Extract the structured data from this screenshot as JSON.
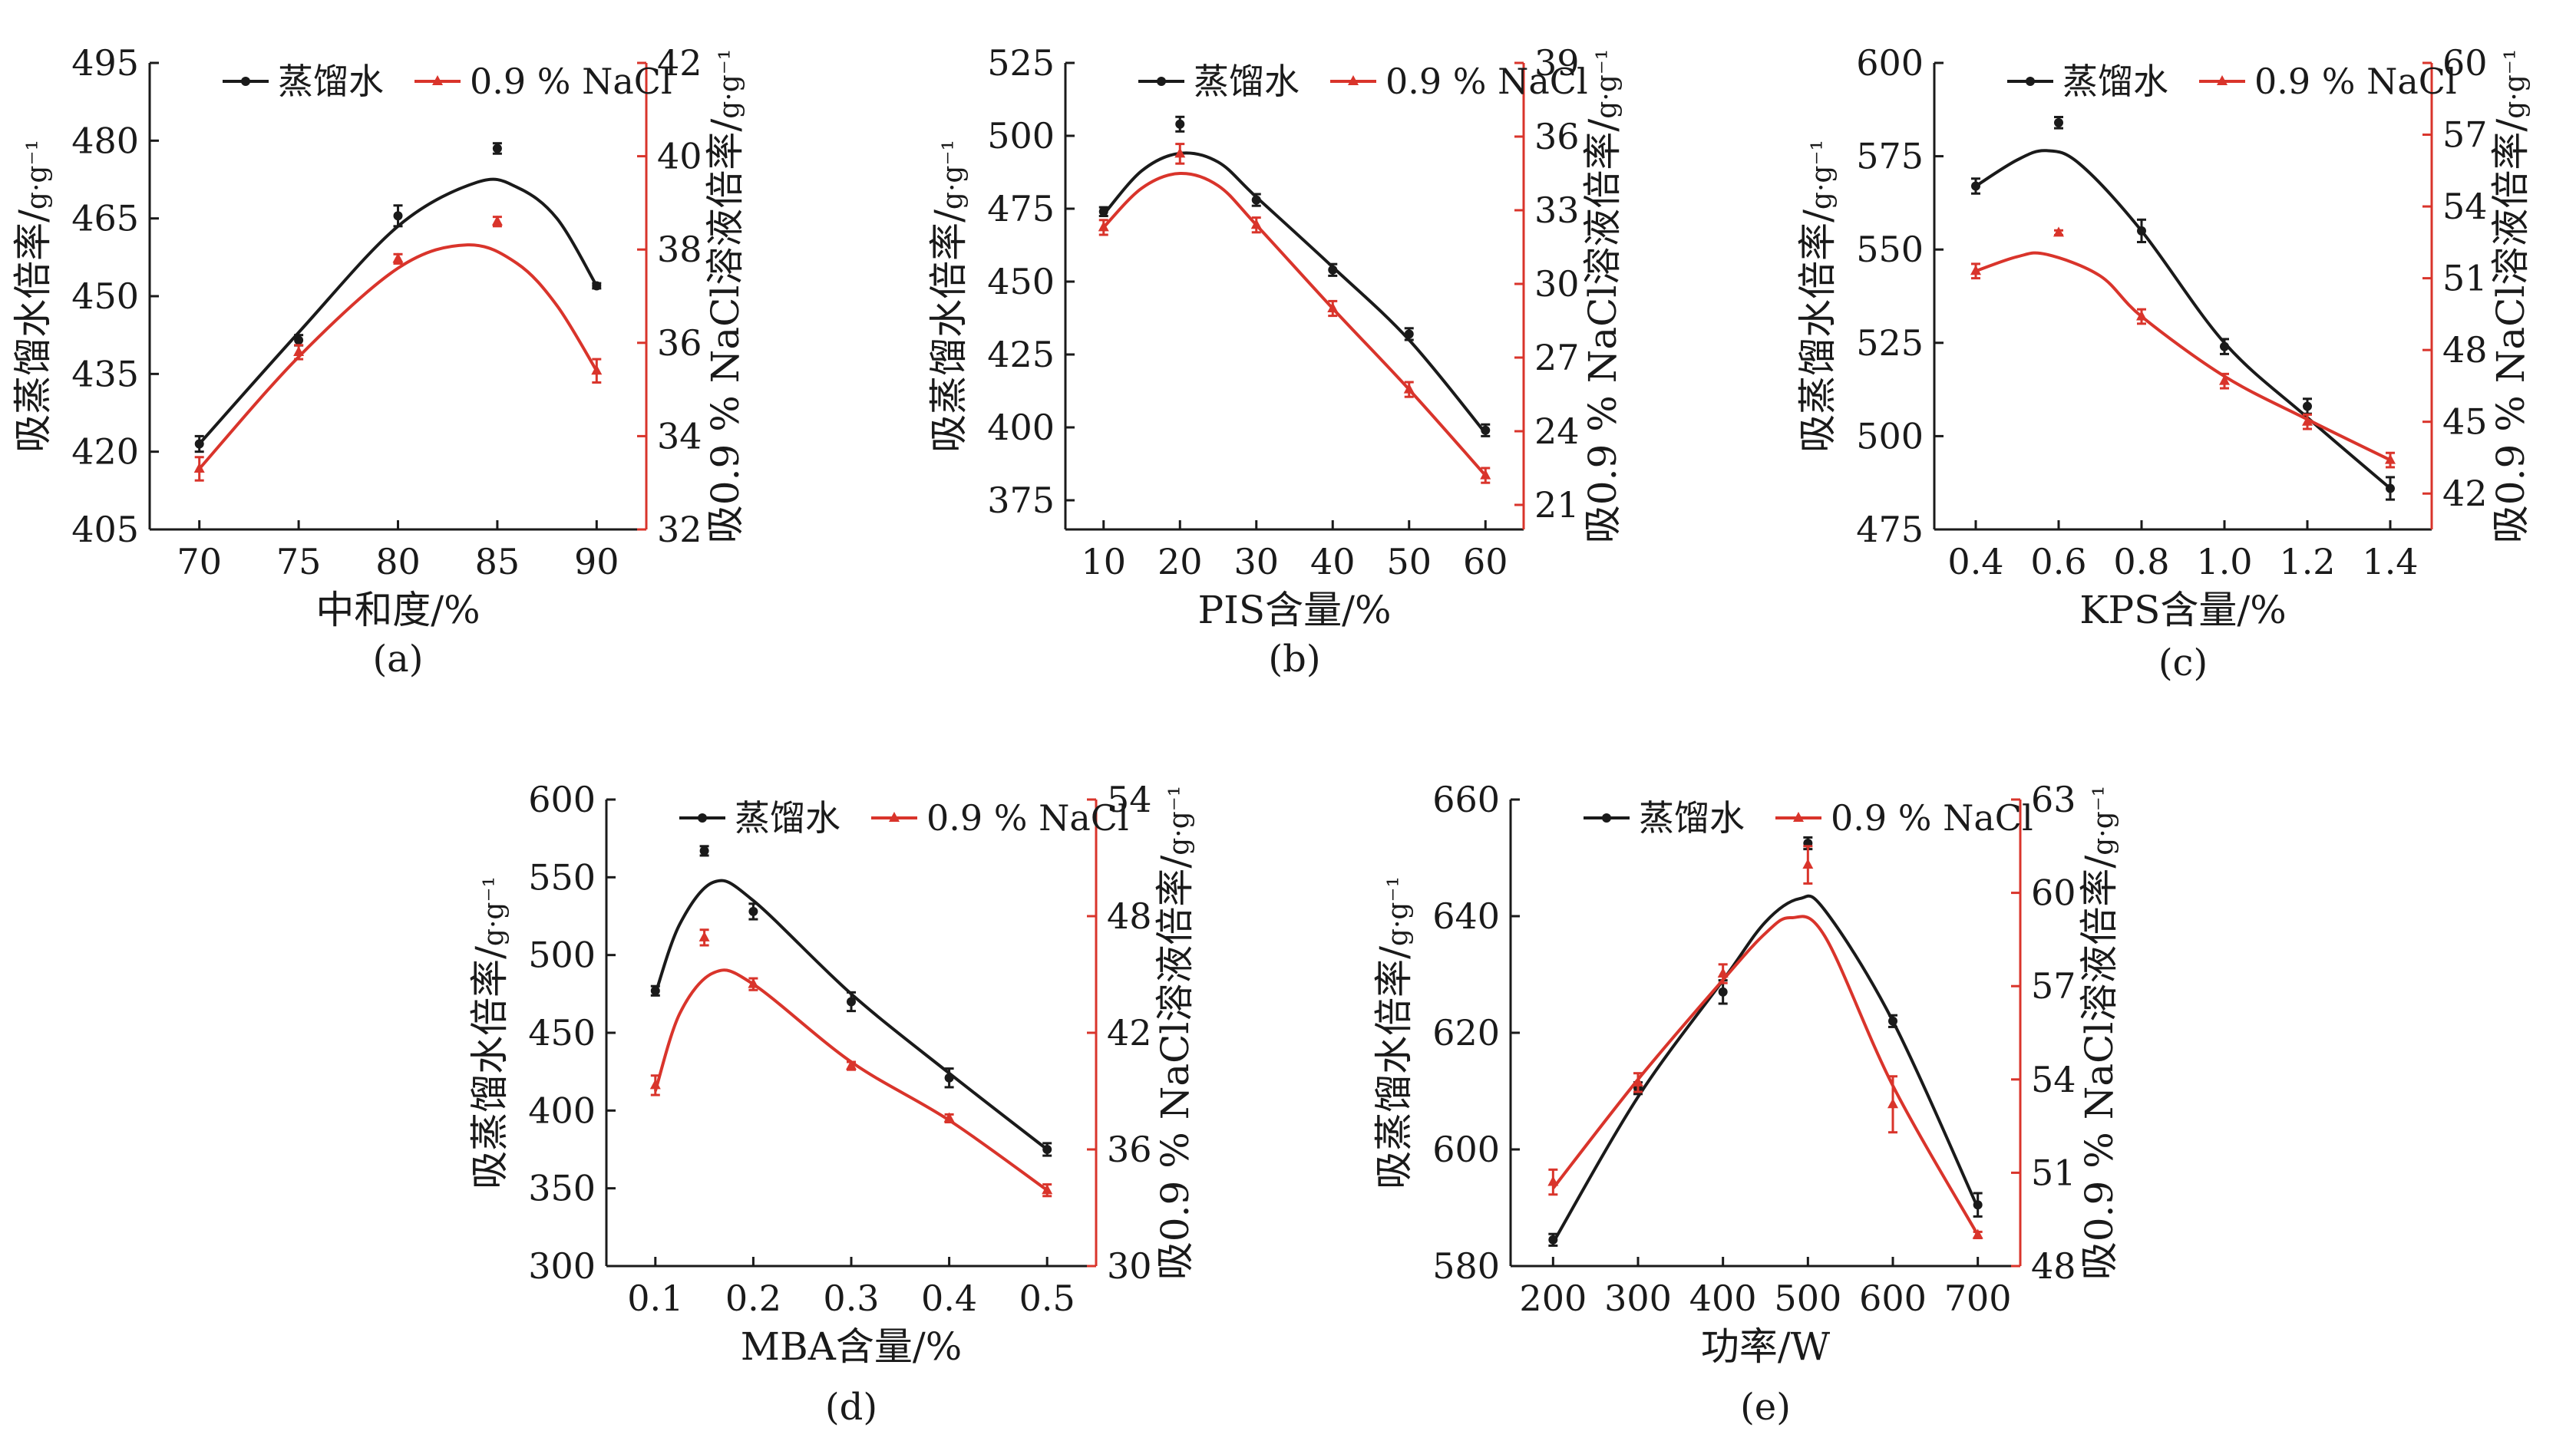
{
  "colors": {
    "black_series": "#1a1a1a",
    "red_series": "#d9342b",
    "axis": "#1a1a1a"
  },
  "chart_data": [
    {
      "panel_label": "(a)",
      "type": "line",
      "xlabel": "中和度/%",
      "ylabel_left_main": "吸蒸馏水倍率/",
      "ylabel_left_unit": "g·g⁻¹",
      "ylabel_right_main": "吸0.9 % NaCl溶液倍率/",
      "ylabel_right_unit": "g·g⁻¹",
      "legend": [
        "蒸馏水",
        "0.9 % NaCl"
      ],
      "x_ticks": [
        "70",
        "75",
        "80",
        "85",
        "90"
      ],
      "x_values": [
        70,
        75,
        80,
        85,
        90
      ],
      "xlim": [
        67.5,
        92.5
      ],
      "y_left_ticks": [
        "405",
        "420",
        "435",
        "450",
        "465",
        "480",
        "495"
      ],
      "y_left_lim": [
        405,
        495
      ],
      "y_right_ticks": [
        "32",
        "34",
        "36",
        "38",
        "40",
        "42"
      ],
      "y_right_lim": [
        32,
        42
      ],
      "series": [
        {
          "name": "蒸馏水",
          "axis": "left",
          "values": [
            421.5,
            441.5,
            465.5,
            478.5,
            452
          ],
          "errors": [
            1.5,
            1,
            2,
            1,
            0.5
          ],
          "fit": [
            [
              70,
              421.5
            ],
            [
              75,
              443
            ],
            [
              80,
              463.5
            ],
            [
              84,
              472
            ],
            [
              86,
              471
            ],
            [
              88,
              465
            ],
            [
              90,
              452
            ]
          ]
        },
        {
          "name": "0.9 % NaCl",
          "axis": "right",
          "values": [
            33.3,
            35.8,
            37.8,
            38.6,
            35.4
          ],
          "errors": [
            0.25,
            0.15,
            0.1,
            0.1,
            0.25
          ],
          "fit": [
            [
              70,
              33.3
            ],
            [
              75,
              35.7
            ],
            [
              80,
              37.6
            ],
            [
              83.5,
              38.1
            ],
            [
              86,
              37.7
            ],
            [
              88,
              36.8
            ],
            [
              90,
              35.4
            ]
          ]
        }
      ]
    },
    {
      "panel_label": "(b)",
      "type": "line",
      "xlabel": "PIS含量/%",
      "ylabel_left_main": "吸蒸馏水倍率/",
      "ylabel_left_unit": "g·g⁻¹",
      "ylabel_right_main": "吸0.9 % NaCl溶液倍率/",
      "ylabel_right_unit": "g·g⁻¹",
      "legend": [
        "蒸馏水",
        "0.9 % NaCl"
      ],
      "x_ticks": [
        "10",
        "20",
        "30",
        "40",
        "50",
        "60"
      ],
      "x_values": [
        10,
        20,
        30,
        40,
        50,
        60
      ],
      "xlim": [
        5,
        65
      ],
      "y_left_ticks": [
        "375",
        "400",
        "425",
        "450",
        "475",
        "500",
        "525"
      ],
      "y_left_lim": [
        365,
        525
      ],
      "y_right_ticks": [
        "21",
        "24",
        "27",
        "30",
        "33",
        "36",
        "39"
      ],
      "y_right_lim": [
        20,
        39
      ],
      "series": [
        {
          "name": "蒸馏水",
          "axis": "left",
          "values": [
            474,
            504,
            478,
            454,
            432,
            399
          ],
          "errors": [
            1.5,
            2.5,
            2,
            2,
            2,
            2
          ],
          "fit": [
            [
              10,
              473
            ],
            [
              15,
              488
            ],
            [
              20,
              494
            ],
            [
              25,
              491
            ],
            [
              30,
              479
            ],
            [
              40,
              455
            ],
            [
              50,
              430
            ],
            [
              60,
              398
            ]
          ]
        },
        {
          "name": "0.9 % NaCl",
          "axis": "right",
          "values": [
            32.3,
            35.3,
            32.4,
            29.0,
            25.7,
            22.2
          ],
          "errors": [
            0.3,
            0.4,
            0.3,
            0.3,
            0.3,
            0.3
          ],
          "fit": [
            [
              10,
              32.3
            ],
            [
              15,
              33.9
            ],
            [
              20,
              34.5
            ],
            [
              25,
              34.0
            ],
            [
              30,
              32.4
            ],
            [
              40,
              29.0
            ],
            [
              50,
              25.7
            ],
            [
              60,
              22.2
            ]
          ]
        }
      ]
    },
    {
      "panel_label": "(c)",
      "type": "line",
      "xlabel": "KPS含量/%",
      "ylabel_left_main": "吸蒸馏水倍率/",
      "ylabel_left_unit": "g·g⁻¹",
      "ylabel_right_main": "吸0.9 % NaCl溶液倍率/",
      "ylabel_right_unit": "g·g⁻¹",
      "legend": [
        "蒸馏水",
        "0.9 % NaCl"
      ],
      "x_ticks": [
        "0.4",
        "0.6",
        "0.8",
        "1.0",
        "1.2",
        "1.4"
      ],
      "x_values": [
        0.4,
        0.6,
        0.8,
        1.0,
        1.2,
        1.4
      ],
      "xlim": [
        0.3,
        1.5
      ],
      "y_left_ticks": [
        "475",
        "500",
        "525",
        "550",
        "575",
        "600"
      ],
      "y_left_lim": [
        475,
        600
      ],
      "y_right_ticks": [
        "42",
        "45",
        "48",
        "51",
        "54",
        "57",
        "60"
      ],
      "y_right_lim": [
        40.5,
        60
      ],
      "series": [
        {
          "name": "蒸馏水",
          "axis": "left",
          "values": [
            567,
            584,
            555,
            524,
            508,
            486
          ],
          "errors": [
            2,
            1.5,
            3,
            2,
            2,
            3
          ],
          "fit": [
            [
              0.4,
              567
            ],
            [
              0.5,
              574
            ],
            [
              0.57,
              576.5
            ],
            [
              0.65,
              573
            ],
            [
              0.8,
              555
            ],
            [
              1.0,
              525
            ],
            [
              1.2,
              505
            ],
            [
              1.4,
              486
            ]
          ]
        },
        {
          "name": "0.9 % NaCl",
          "axis": "right",
          "values": [
            51.3,
            52.9,
            49.4,
            46.7,
            45.0,
            43.4
          ],
          "errors": [
            0.3,
            0.1,
            0.3,
            0.3,
            0.3,
            0.3
          ],
          "fit": [
            [
              0.4,
              51.3
            ],
            [
              0.5,
              51.9
            ],
            [
              0.57,
              52.0
            ],
            [
              0.7,
              51.1
            ],
            [
              0.8,
              49.4
            ],
            [
              1.0,
              46.9
            ],
            [
              1.2,
              45.1
            ],
            [
              1.4,
              43.4
            ]
          ]
        }
      ]
    },
    {
      "panel_label": "(d)",
      "type": "line",
      "xlabel": "MBA含量/%",
      "ylabel_left_main": "吸蒸馏水倍率/",
      "ylabel_left_unit": "g·g⁻¹",
      "ylabel_right_main": "吸0.9 % NaCl溶液倍率/",
      "ylabel_right_unit": "g·g⁻¹",
      "legend": [
        "蒸馏水",
        "0.9 % NaCl"
      ],
      "x_ticks": [
        "0.1",
        "0.2",
        "0.3",
        "0.4",
        "0.5"
      ],
      "x_values": [
        0.1,
        0.15,
        0.2,
        0.3,
        0.4,
        0.5
      ],
      "xlim": [
        0.05,
        0.55
      ],
      "y_left_ticks": [
        "300",
        "350",
        "400",
        "450",
        "500",
        "550",
        "600"
      ],
      "y_left_lim": [
        300,
        600
      ],
      "y_right_ticks": [
        "30",
        "36",
        "42",
        "48",
        "54"
      ],
      "y_right_lim": [
        30,
        54
      ],
      "series": [
        {
          "name": "蒸馏水",
          "axis": "left",
          "values": [
            477,
            567,
            528,
            470,
            421,
            375
          ],
          "errors": [
            3,
            3,
            5,
            6,
            6,
            4
          ],
          "fit": [
            [
              0.1,
              475
            ],
            [
              0.125,
              520
            ],
            [
              0.16,
              547
            ],
            [
              0.2,
              535
            ],
            [
              0.3,
              475
            ],
            [
              0.4,
              424
            ],
            [
              0.5,
              375
            ]
          ]
        },
        {
          "name": "0.9 % NaCl",
          "axis": "right",
          "values": [
            39.3,
            46.9,
            44.5,
            40.3,
            37.6,
            33.9
          ],
          "errors": [
            0.5,
            0.4,
            0.3,
            0.2,
            0.2,
            0.3
          ],
          "fit": [
            [
              0.1,
              39.0
            ],
            [
              0.125,
              43.0
            ],
            [
              0.16,
              45.1
            ],
            [
              0.2,
              44.5
            ],
            [
              0.3,
              40.5
            ],
            [
              0.4,
              37.5
            ],
            [
              0.5,
              33.9
            ]
          ]
        }
      ]
    },
    {
      "panel_label": "(e)",
      "type": "line",
      "xlabel": "功率/W",
      "ylabel_left_main": "吸蒸馏水倍率/",
      "ylabel_left_unit": "g·g⁻¹",
      "ylabel_right_main": "吸0.9 % NaCl溶液倍率/",
      "ylabel_right_unit": "g·g⁻¹",
      "legend": [
        "蒸馏水",
        "0.9 % NaCl"
      ],
      "x_ticks": [
        "200",
        "300",
        "400",
        "500",
        "600",
        "700"
      ],
      "x_values": [
        200,
        300,
        400,
        500,
        600,
        700
      ],
      "xlim": [
        150,
        750
      ],
      "y_left_ticks": [
        "580",
        "600",
        "620",
        "640",
        "660"
      ],
      "y_left_lim": [
        580,
        660
      ],
      "y_right_ticks": [
        "48",
        "51",
        "54",
        "57",
        "60",
        "63"
      ],
      "y_right_lim": [
        48,
        63
      ],
      "series": [
        {
          "name": "蒸馏水",
          "axis": "left",
          "values": [
            584.5,
            610.5,
            627,
            652.5,
            622,
            590.5
          ],
          "errors": [
            1,
            1,
            2,
            1,
            1,
            2
          ],
          "fit": [
            [
              200,
              584
            ],
            [
              300,
              609
            ],
            [
              400,
              629
            ],
            [
              450,
              639
            ],
            [
              490,
              643
            ],
            [
              520,
              641
            ],
            [
              600,
              622
            ],
            [
              700,
              590
            ]
          ]
        },
        {
          "name": "0.9 % NaCl",
          "axis": "right",
          "values": [
            50.7,
            53.9,
            57.4,
            60.9,
            53.2,
            49.0
          ],
          "errors": [
            0.4,
            0.3,
            0.3,
            0.6,
            0.9,
            0.1
          ],
          "fit": [
            [
              200,
              50.5
            ],
            [
              300,
              54.0
            ],
            [
              400,
              57.2
            ],
            [
              450,
              58.7
            ],
            [
              480,
              59.2
            ],
            [
              520,
              58.6
            ],
            [
              600,
              53.8
            ],
            [
              700,
              49.0
            ]
          ]
        }
      ]
    }
  ]
}
